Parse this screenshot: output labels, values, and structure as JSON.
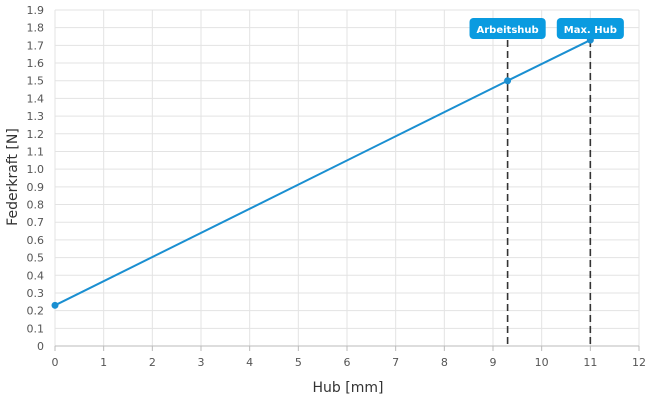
{
  "chart_data": {
    "type": "line",
    "title": "",
    "xlabel": "Hub [mm]",
    "ylabel": "Federkraft [N]",
    "xlim": [
      0,
      12
    ],
    "ylim": [
      0,
      1.9
    ],
    "x_ticks": [
      "0",
      "1",
      "2",
      "3",
      "4",
      "5",
      "6",
      "7",
      "8",
      "9",
      "10",
      "11",
      "12"
    ],
    "y_ticks": [
      "0",
      "0.1",
      "0.2",
      "0.3",
      "0.4",
      "0.5",
      "0.6",
      "0.7",
      "0.8",
      "0.9",
      "1.0",
      "1.1",
      "1.2",
      "1.3",
      "1.4",
      "1.5",
      "1.6",
      "1.7",
      "1.8",
      "1.9"
    ],
    "grid": true,
    "series": [
      {
        "x": [
          0,
          9.3,
          11
        ],
        "y": [
          0.23,
          1.5,
          1.73
        ],
        "color": "#1a8fd1"
      }
    ],
    "markers": [
      {
        "label": "Arbeitshub",
        "x": 9.3,
        "y": 1.5
      },
      {
        "label": "Max. Hub",
        "x": 11,
        "y": 1.73
      }
    ],
    "colors": {
      "line": "#1a8fd1",
      "badge": "#0a9be0",
      "grid": "#e3e3e3",
      "axis": "#bbbbbb",
      "dashed": "#333333"
    }
  }
}
